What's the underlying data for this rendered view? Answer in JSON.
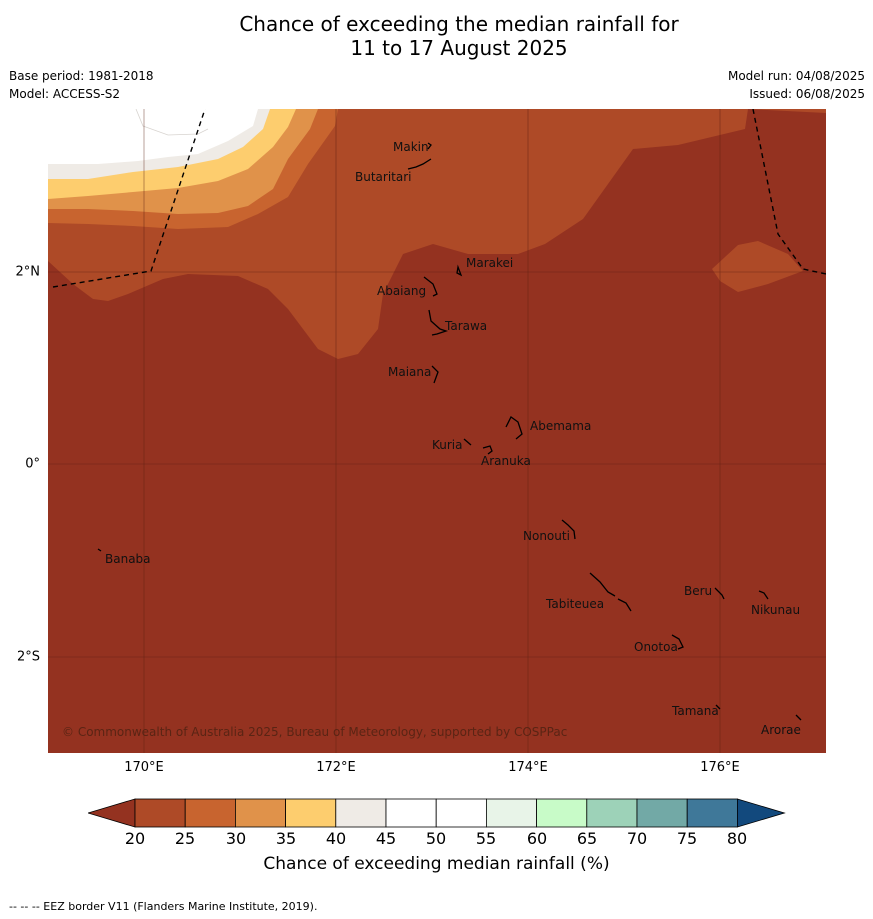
{
  "title_line1": "Chance of exceeding the median rainfall for",
  "title_line2": "11 to 17 August 2025",
  "base_period": "Base period: 1981-2018",
  "model": "Model: ACCESS-S2",
  "model_run": "Model run: 04/08/2025",
  "issued": "Issued: 06/08/2025",
  "copyright": "© Commonwealth of Australia 2025, Bureau of Meteorology, supported by COSPPac",
  "x_ticks": [
    "170°E",
    "172°E",
    "174°E",
    "176°E"
  ],
  "y_ticks": [
    "2°N",
    "0°",
    "2°S"
  ],
  "places": [
    "Makin",
    "Butaritari",
    "Marakei",
    "Abaiang",
    "Tarawa",
    "Maiana",
    "Abemama",
    "Kuria",
    "Aranuka",
    "Nonouti",
    "Banaba",
    "Beru",
    "Nikunau",
    "Tabiteuea",
    "Onotoa",
    "Tamana",
    "Arorae"
  ],
  "colorbar": {
    "labels": [
      "20",
      "25",
      "30",
      "35",
      "40",
      "45",
      "50",
      "55",
      "60",
      "65",
      "70",
      "75",
      "80"
    ],
    "colors": [
      "#ae4a27",
      "#c8642f",
      "#e0924a",
      "#fdcd6e",
      "#efebe6",
      "#ffffff",
      "#ffffff",
      "#e8f4e8",
      "#c8fbc8",
      "#9dd2b8",
      "#72a9a6",
      "#3f7899"
    ],
    "under_color": "#943220",
    "over_color": "#12497d",
    "title": "Chance of exceeding median rainfall (%)"
  },
  "footnote": "--  --  -- EEZ border V11 (Flanders Marine Institute, 2019)."
}
